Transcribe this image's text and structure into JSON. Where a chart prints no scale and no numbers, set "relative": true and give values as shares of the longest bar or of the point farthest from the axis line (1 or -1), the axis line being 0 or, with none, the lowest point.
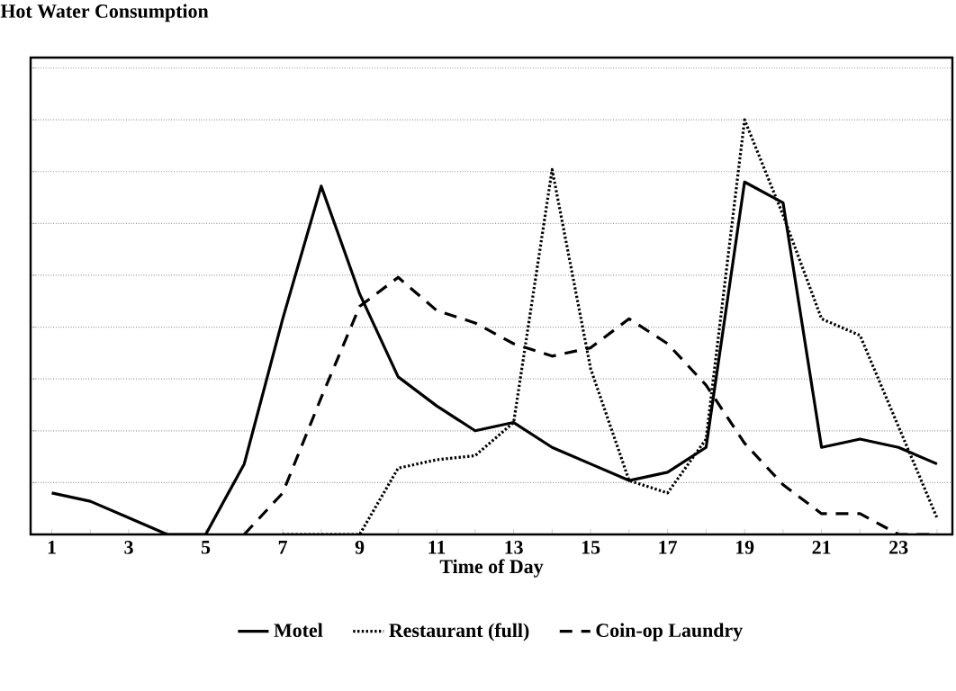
{
  "chart_data": {
    "type": "line",
    "title": "Hot Water Consumption",
    "xlabel": "Time of Day",
    "relative": true,
    "grid": "y",
    "legend": "bottom",
    "marker": "none",
    "categories": [
      "1",
      null,
      "3",
      null,
      "5",
      null,
      "7",
      null,
      "9",
      null,
      "11",
      null,
      "13",
      null,
      "15",
      null,
      "17",
      null,
      "19",
      null,
      "21",
      null,
      "23",
      null
    ],
    "series": [
      {
        "name": "Motel",
        "color": "#000000",
        "line_style": "solid",
        "values": [
          0.1,
          0.08,
          0.04,
          0,
          0,
          0.17,
          0.52,
          0.84,
          0.58,
          0.38,
          0.31,
          0.25,
          0.27,
          0.21,
          0.17,
          0.13,
          0.15,
          0.21,
          0.85,
          0.8,
          0.21,
          0.23,
          0.21,
          0.17
        ]
      },
      {
        "name": "Restaurant (full)",
        "color": "#000000",
        "line_style": "dotted",
        "values": [
          null,
          null,
          null,
          null,
          null,
          null,
          0,
          0,
          0,
          0.16,
          0.18,
          0.19,
          0.27,
          0.88,
          0.4,
          0.13,
          0.1,
          0.23,
          1,
          0.77,
          0.52,
          0.48,
          0.26,
          0.04
        ]
      },
      {
        "name": "Coin-op Laundry",
        "color": "#000000",
        "line_style": "dashed",
        "values": [
          null,
          null,
          null,
          null,
          null,
          0,
          0.1,
          0.33,
          0.55,
          0.62,
          0.54,
          0.51,
          0.46,
          0.43,
          0.45,
          0.52,
          0.46,
          0.36,
          0.22,
          0.12,
          0.05,
          0.05,
          0,
          0
        ]
      }
    ]
  }
}
